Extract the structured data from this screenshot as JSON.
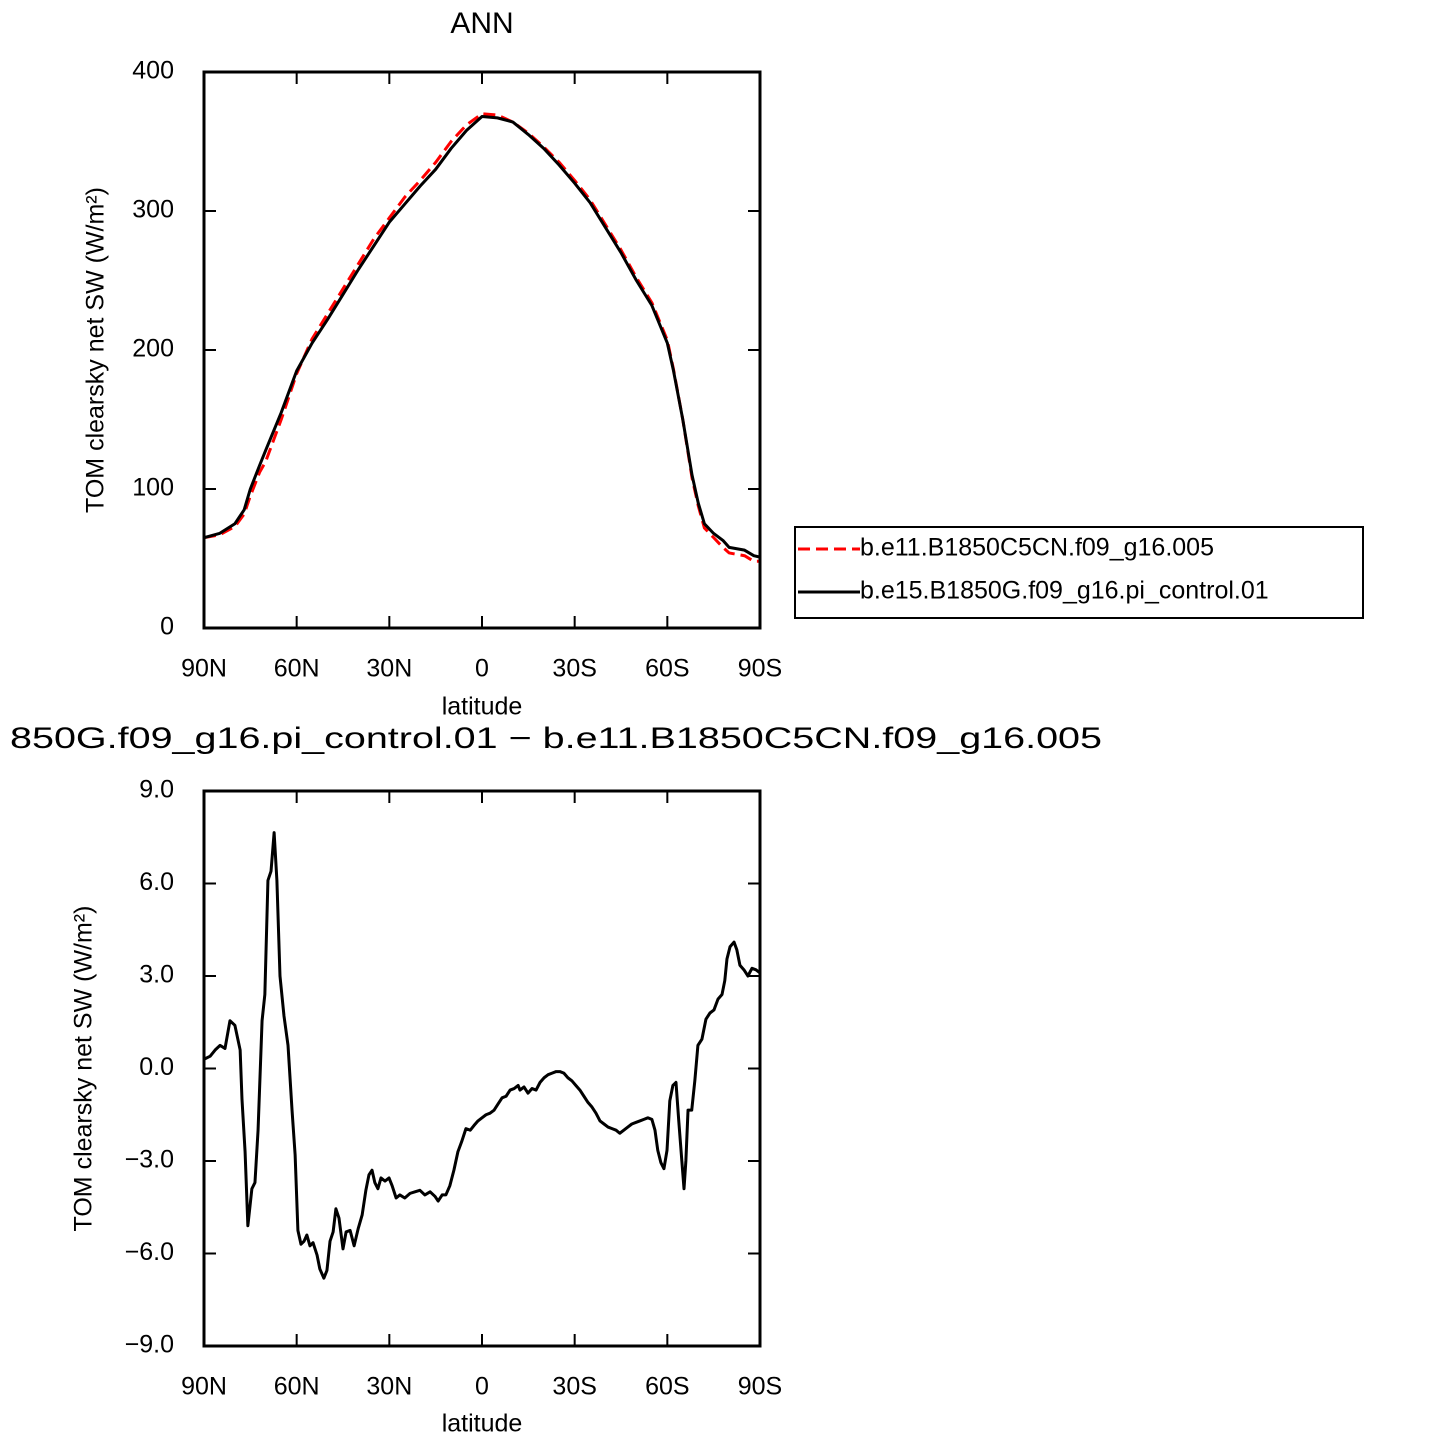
{
  "chart_data": [
    {
      "type": "line",
      "title": "ANN",
      "xlabel": "latitude",
      "ylabel": "TOM clearsky net SW (W/m²)",
      "x": [
        90,
        85,
        80,
        77,
        75,
        72,
        70,
        65,
        60,
        55,
        50,
        45,
        40,
        35,
        30,
        25,
        20,
        15,
        10,
        5,
        0,
        -5,
        -10,
        -15,
        -20,
        -25,
        -30,
        -35,
        -40,
        -45,
        -50,
        -55,
        -60,
        -62,
        -65,
        -68,
        -70,
        -72,
        -75,
        -78,
        -80,
        -85,
        -88,
        -90
      ],
      "series": [
        {
          "name": "b.e11.B1850C5CN.f09_g16.005",
          "color": "#ff0000",
          "style": "dashed",
          "values": [
            65,
            67,
            73,
            82,
            95,
            112,
            120,
            150,
            183,
            208,
            226,
            244,
            262,
            280,
            295,
            310,
            322,
            335,
            350,
            362,
            370,
            369,
            364,
            356,
            346,
            335,
            322,
            308,
            290,
            272,
            252,
            234,
            207,
            186,
            150,
            108,
            88,
            72,
            65,
            58,
            54,
            52,
            48,
            48
          ]
        },
        {
          "name": "b.e15.B1850G.f09_g16.pi_control.01",
          "color": "#000000",
          "style": "solid",
          "values": [
            65,
            68,
            75,
            85,
            100,
            117,
            128,
            155,
            185,
            205,
            222,
            240,
            258,
            275,
            292,
            305,
            318,
            330,
            345,
            358,
            368,
            367,
            364,
            355,
            345,
            333,
            320,
            306,
            288,
            270,
            250,
            232,
            205,
            185,
            150,
            110,
            90,
            75,
            68,
            63,
            58,
            56,
            52,
            51
          ]
        }
      ],
      "xlim": [
        90,
        -90
      ],
      "xticks": [
        {
          "value": 90,
          "label": "90N"
        },
        {
          "value": 60,
          "label": "60N"
        },
        {
          "value": 30,
          "label": "30N"
        },
        0,
        {
          "value": -30,
          "label": "30S"
        },
        {
          "value": -60,
          "label": "60S"
        },
        {
          "value": -90,
          "label": "90S"
        }
      ],
      "ylim": [
        0,
        400
      ],
      "yticks": [
        0,
        100,
        200,
        300,
        400
      ],
      "legend": "right"
    },
    {
      "type": "line",
      "title": "850G.f09_g16.pi_control.01 − b.e11.B1850C5CN.f09_g16.005",
      "xlabel": "latitude",
      "ylabel": "TOM clearsky net SW (W/m²)",
      "x": [
        90,
        88,
        86.4,
        84.8,
        83.2,
        81.6,
        80,
        78.3,
        77.7,
        76.7,
        75.8,
        74.5,
        73.5,
        72.5,
        71.2,
        70.3,
        69.3,
        68.3,
        67.3,
        66.4,
        65.4,
        64.1,
        62.8,
        61.5,
        60.5,
        59.6,
        58.6,
        57.6,
        56.7,
        55.7,
        54.7,
        53.4,
        52.5,
        51.2,
        50.2,
        49.2,
        48.2,
        47.3,
        46.3,
        45,
        44,
        42.7,
        41.4,
        40.1,
        38.8,
        37.6,
        36.6,
        35.6,
        34.7,
        33.7,
        32.7,
        31.4,
        30.1,
        29.1,
        27.8,
        26.6,
        25,
        23.3,
        21.7,
        20.1,
        18.5,
        16.8,
        15.2,
        14.2,
        12.9,
        11.7,
        10.4,
        9.1,
        7.8,
        6.5,
        5.2,
        3.8,
        2.6,
        1.3,
        0,
        -1.3,
        -2.6,
        -3.9,
        -5.2,
        -6.5,
        -7.8,
        -9.1,
        -10.4,
        -11.7,
        -12.3,
        -13.6,
        -14.9,
        -16.2,
        -17.5,
        -18.8,
        -20.1,
        -21.4,
        -22.7,
        -24,
        -25.2,
        -26.5,
        -27.8,
        -29.1,
        -30.4,
        -31.7,
        -33,
        -34.3,
        -35.6,
        -36.9,
        -38.2,
        -39.5,
        -40.8,
        -42.1,
        -43.4,
        -44.6,
        -45.9,
        -47.2,
        -48.5,
        -49.8,
        -51.1,
        -52.4,
        -53.7,
        -55,
        -56,
        -56.9,
        -57.9,
        -58.9,
        -59.9,
        -60.8,
        -61.8,
        -62.8,
        -63.7,
        -64.7,
        -65.4,
        -66,
        -66.7,
        -67.9,
        -68.9,
        -69.9,
        -71.2,
        -72.5,
        -73.8,
        -75.1,
        -76.4,
        -77.7,
        -78.6,
        -79.3,
        -80.3,
        -81.6,
        -82.5,
        -83.5,
        -84.8,
        -86.1,
        -87.4,
        -88.7,
        -90
      ],
      "values": [
        0.3,
        0.4,
        0.6,
        0.75,
        0.65,
        1.55,
        1.4,
        0.6,
        -1.0,
        -2.7,
        -5.1,
        -3.9,
        -3.7,
        -2.0,
        1.55,
        2.4,
        6.1,
        6.4,
        7.65,
        6.1,
        3.0,
        1.7,
        0.75,
        -1.35,
        -2.8,
        -5.25,
        -5.7,
        -5.6,
        -5.4,
        -5.75,
        -5.65,
        -6.05,
        -6.5,
        -6.8,
        -6.55,
        -5.6,
        -5.3,
        -4.55,
        -4.85,
        -5.85,
        -5.3,
        -5.25,
        -5.75,
        -5.2,
        -4.75,
        -3.95,
        -3.45,
        -3.3,
        -3.7,
        -3.9,
        -3.55,
        -3.65,
        -3.55,
        -3.8,
        -4.2,
        -4.1,
        -4.2,
        -4.05,
        -4.0,
        -3.95,
        -4.1,
        -4.0,
        -4.15,
        -4.3,
        -4.1,
        -4.1,
        -3.8,
        -3.3,
        -2.7,
        -2.35,
        -1.95,
        -2.0,
        -1.85,
        -1.7,
        -1.6,
        -1.5,
        -1.45,
        -1.35,
        -1.15,
        -0.95,
        -0.9,
        -0.7,
        -0.65,
        -0.55,
        -0.7,
        -0.6,
        -0.8,
        -0.65,
        -0.7,
        -0.45,
        -0.3,
        -0.2,
        -0.15,
        -0.1,
        -0.1,
        -0.15,
        -0.3,
        -0.4,
        -0.55,
        -0.7,
        -0.9,
        -1.1,
        -1.25,
        -1.45,
        -1.7,
        -1.8,
        -1.9,
        -1.95,
        -2.0,
        -2.1,
        -2.0,
        -1.9,
        -1.8,
        -1.75,
        -1.7,
        -1.65,
        -1.6,
        -1.65,
        -2.0,
        -2.65,
        -3.05,
        -3.25,
        -2.65,
        -1.05,
        -0.55,
        -0.45,
        -1.7,
        -3.0,
        -3.9,
        -3.0,
        -1.35,
        -1.35,
        -0.4,
        0.75,
        0.95,
        1.6,
        1.8,
        1.9,
        2.25,
        2.4,
        2.85,
        3.55,
        3.95,
        4.1,
        3.85,
        3.35,
        3.2,
        3.0,
        3.25,
        3.2,
        3.1
      ],
      "color": "#000000",
      "xlim": [
        90,
        -90
      ],
      "xticks": [
        {
          "value": 90,
          "label": "90N"
        },
        {
          "value": 60,
          "label": "60N"
        },
        {
          "value": 30,
          "label": "30N"
        },
        0,
        {
          "value": -30,
          "label": "30S"
        },
        {
          "value": -60,
          "label": "60S"
        },
        {
          "value": -90,
          "label": "90S"
        }
      ],
      "ylim": [
        -9,
        9
      ],
      "yticks": [
        {
          "value": -9,
          "label": "−9.0"
        },
        {
          "value": -6,
          "label": "−6.0"
        },
        {
          "value": -3,
          "label": "−3.0"
        },
        {
          "value": 0,
          "label": "0.0"
        },
        {
          "value": 3,
          "label": "3.0"
        },
        {
          "value": 6,
          "label": "6.0"
        },
        {
          "value": 9,
          "label": "9.0"
        }
      ]
    }
  ]
}
